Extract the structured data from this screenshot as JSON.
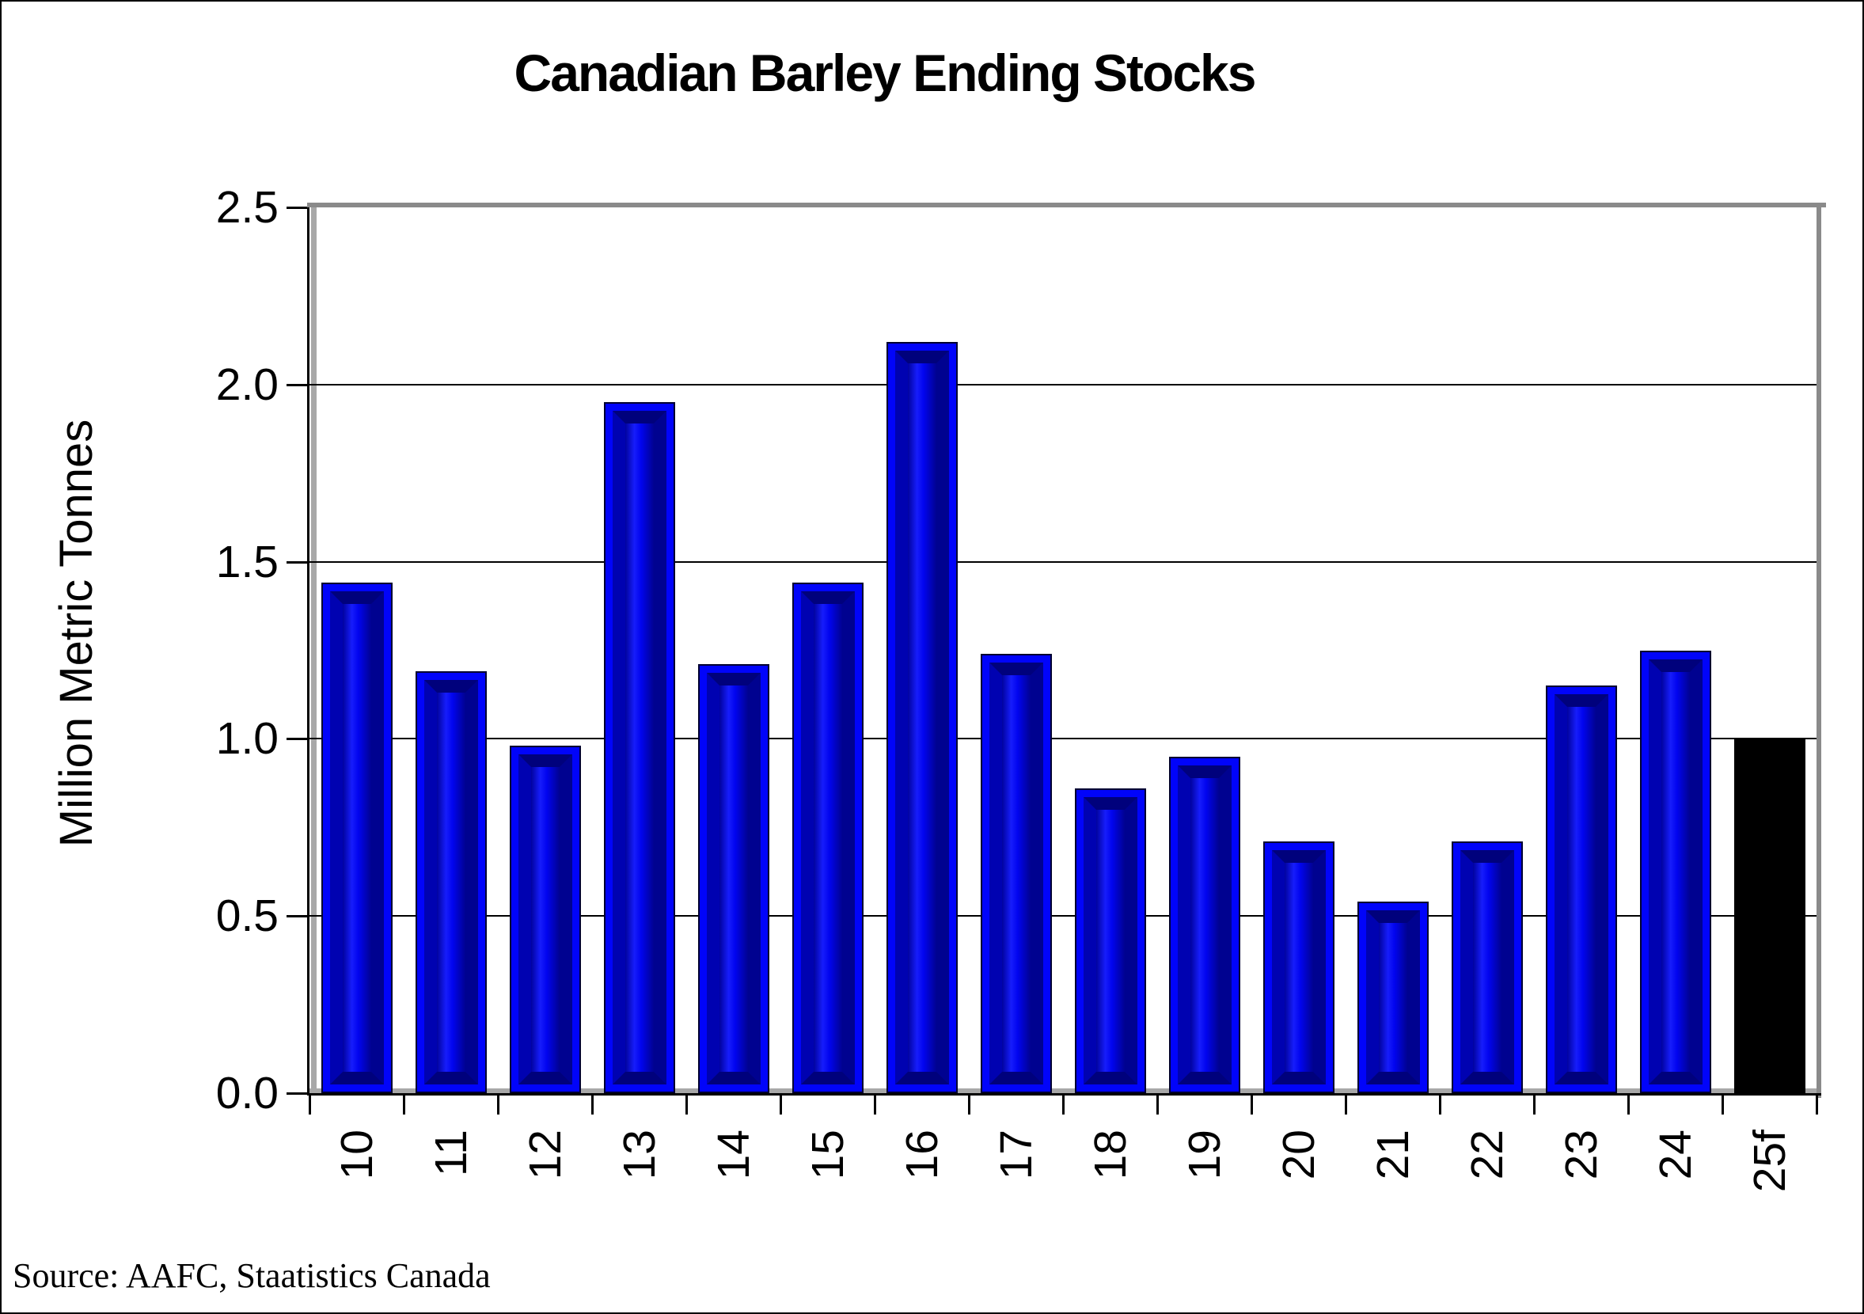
{
  "chart_data": {
    "type": "bar",
    "title": "Canadian Barley Ending Stocks",
    "ylabel": "Million Metric Tonnes",
    "xlabel": "",
    "categories": [
      "10",
      "11",
      "12",
      "13",
      "14",
      "15",
      "16",
      "17",
      "18",
      "19",
      "20",
      "21",
      "22",
      "23",
      "24",
      "25f"
    ],
    "values": [
      1.44,
      1.19,
      0.98,
      1.95,
      1.21,
      1.44,
      2.12,
      1.24,
      0.86,
      0.95,
      0.71,
      0.54,
      0.71,
      1.15,
      1.25,
      1.0
    ],
    "ylim": [
      0,
      2.5
    ],
    "ytick_step": 0.5,
    "ytick_labels": [
      "0.0",
      "0.5",
      "1.0",
      "1.5",
      "2.0",
      "2.5"
    ],
    "grid": true,
    "legend_position": "none",
    "bar_color": "#0000fa",
    "forecast_bar_color": "#000000",
    "forecast_category": "25f",
    "plot_border_color": "#8a8a8a",
    "x_labels_rotation_deg": -90
  },
  "source_note": "Source: AAFC, Staatistics Canada"
}
